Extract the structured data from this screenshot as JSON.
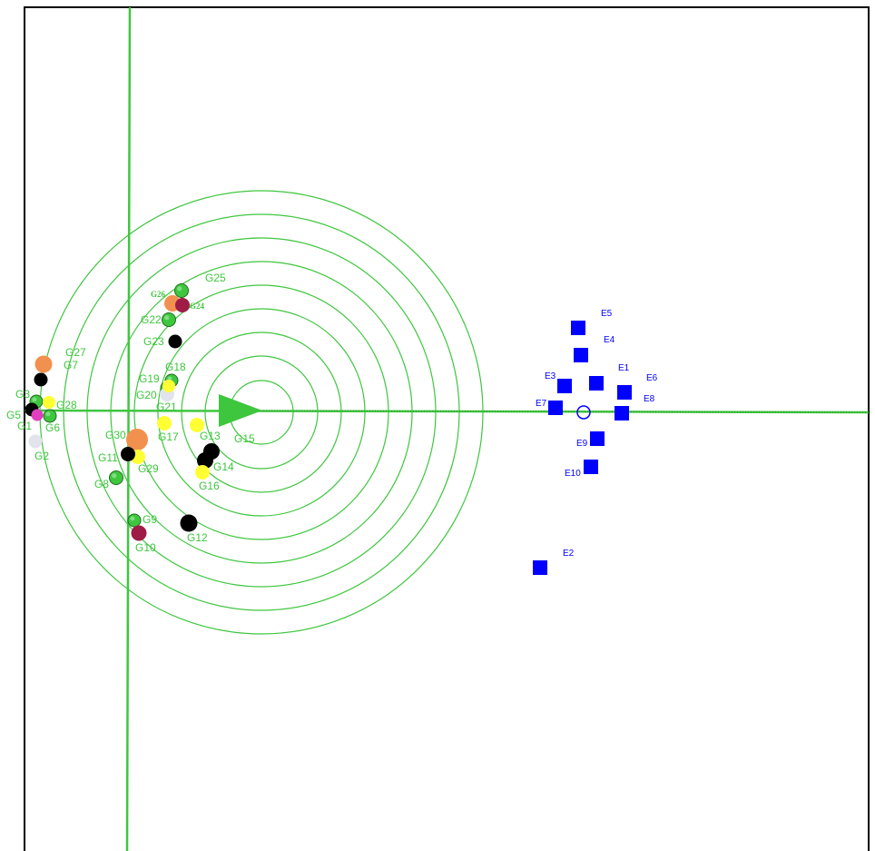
{
  "colors": {
    "green": "#3fc63f",
    "blue": "#0000ff",
    "orange": "#f2914f",
    "maroon": "#9e1c45",
    "black": "#000000",
    "yellow": "#ffff33",
    "lightgray": "#e1e4ea",
    "pink": "#e040c0",
    "dark_green_ball": "#2b9a2b"
  },
  "green_player": {
    "label": "G15",
    "pointer": "triangle-right-icon"
  },
  "green_nodes": [
    {
      "label": "G25",
      "color": "green"
    },
    {
      "label": "G26",
      "color": "orange"
    },
    {
      "label": "G24",
      "color": "maroon"
    },
    {
      "label": "G22",
      "color": "green"
    },
    {
      "label": "G23",
      "color": "black"
    },
    {
      "label": "G27",
      "color": "orange"
    },
    {
      "label": "G7",
      "color": "black"
    },
    {
      "label": "G18",
      "color": "green"
    },
    {
      "label": "G19",
      "color": "green"
    },
    {
      "label": "G20",
      "color": "lightgray"
    },
    {
      "label": "G21",
      "color": "yellow"
    },
    {
      "label": "G3",
      "color": "green"
    },
    {
      "label": "G28",
      "color": "yellow"
    },
    {
      "label": "G5",
      "color": "black"
    },
    {
      "label": "G1",
      "color": "pink"
    },
    {
      "label": "G6",
      "color": "green"
    },
    {
      "label": "G2",
      "color": "lightgray"
    },
    {
      "label": "G17",
      "color": "yellow"
    },
    {
      "label": "G13",
      "color": "yellow"
    },
    {
      "label": "G30",
      "color": "orange"
    },
    {
      "label": "G29",
      "color": "yellow"
    },
    {
      "label": "G11",
      "color": "black"
    },
    {
      "label": "G14",
      "color": "black"
    },
    {
      "label": "G16",
      "color": "yellow"
    },
    {
      "label": "G8",
      "color": "green"
    },
    {
      "label": "G9",
      "color": "green"
    },
    {
      "label": "G10",
      "color": "maroon"
    },
    {
      "label": "G12",
      "color": "black"
    }
  ],
  "blue_nodes": [
    {
      "label": "E5"
    },
    {
      "label": "E4"
    },
    {
      "label": "E1"
    },
    {
      "label": "E6"
    },
    {
      "label": "E3"
    },
    {
      "label": "E7"
    },
    {
      "label": "E8"
    },
    {
      "label": "E9"
    },
    {
      "label": "E10"
    },
    {
      "label": "E2"
    }
  ],
  "blue_center": "circle-icon"
}
